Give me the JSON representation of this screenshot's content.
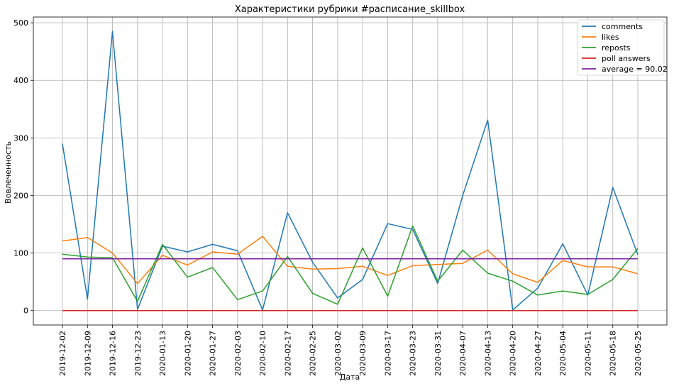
{
  "chart_data": {
    "type": "line",
    "title": "Характеристики рубрики #расписание_skillbox",
    "xlabel": "Дата",
    "ylabel": "Вовлеченность",
    "ylim": [
      -25,
      510
    ],
    "yticks": [
      "0",
      "100",
      "200",
      "300",
      "400",
      "500"
    ],
    "grid": true,
    "legend_position": "top-right",
    "categories": [
      "2019-12-02",
      "2019-12-09",
      "2019-12-16",
      "2019-12-23",
      "2020-01-13",
      "2020-01-20",
      "2020-01-27",
      "2020-02-03",
      "2020-02-10",
      "2020-02-17",
      "2020-02-25",
      "2020-03-02",
      "2020-03-09",
      "2020-03-17",
      "2020-03-23",
      "2020-03-31",
      "2020-04-07",
      "2020-04-13",
      "2020-04-20",
      "2020-04-27",
      "2020-05-04",
      "2020-05-11",
      "2020-05-18",
      "2020-05-25"
    ],
    "series": [
      {
        "name": "comments",
        "color": "#1f77b4",
        "values": [
          290,
          20,
          485,
          2,
          112,
          102,
          115,
          104,
          1,
          170,
          84,
          22,
          54,
          151,
          141,
          47,
          200,
          331,
          1,
          39,
          116,
          27,
          214,
          97
        ]
      },
      {
        "name": "likes",
        "color": "#ff7f0e",
        "values": [
          121,
          127,
          100,
          47,
          96,
          79,
          102,
          98,
          129,
          77,
          72,
          73,
          77,
          61,
          78,
          80,
          82,
          105,
          64,
          49,
          87,
          76,
          76,
          64
        ]
      },
      {
        "name": "reposts",
        "color": "#2ca02c",
        "values": [
          98,
          93,
          92,
          16,
          115,
          58,
          75,
          19,
          34,
          94,
          30,
          11,
          109,
          25,
          147,
          51,
          105,
          65,
          51,
          27,
          34,
          28,
          54,
          108
        ]
      },
      {
        "name": "poll answers",
        "color": "#d62728",
        "values": [
          0,
          0,
          0,
          0,
          0,
          0,
          0,
          0,
          0,
          0,
          0,
          0,
          0,
          0,
          0,
          0,
          0,
          0,
          0,
          0,
          0,
          0,
          0,
          0
        ]
      },
      {
        "name": "average = 90.02",
        "color": "#7b1fa2",
        "values": [
          90.02,
          90.02,
          90.02,
          90.02,
          90.02,
          90.02,
          90.02,
          90.02,
          90.02,
          90.02,
          90.02,
          90.02,
          90.02,
          90.02,
          90.02,
          90.02,
          90.02,
          90.02,
          90.02,
          90.02,
          90.02,
          90.02,
          90.02,
          90.02
        ]
      }
    ]
  }
}
